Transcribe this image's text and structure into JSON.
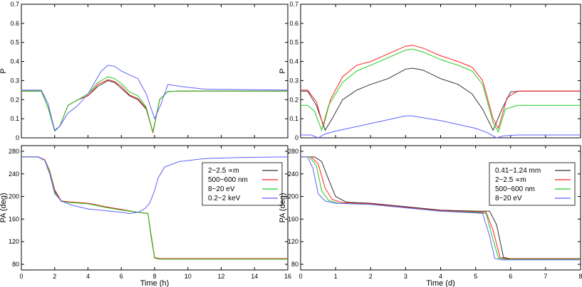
{
  "chart_data": [
    {
      "panel": "top-left",
      "type": "line",
      "xlabel": "",
      "ylabel": "P",
      "xlim": [
        0,
        16
      ],
      "ylim": [
        0,
        0.7
      ],
      "xticks": [],
      "yticks": [
        0,
        0.1,
        0.2,
        0.3,
        0.4,
        0.5,
        0.6,
        0.7
      ],
      "ytick_labels": [
        "0",
        "0.1",
        "0.2",
        "0.3",
        "0.4",
        "0.5",
        "0.6",
        "0.7"
      ],
      "legend": null,
      "series": [
        {
          "color": "#333333",
          "x": [
            0,
            1.2,
            1.6,
            2.0,
            2.3,
            2.8,
            3.4,
            4.0,
            4.6,
            5.2,
            5.6,
            6.0,
            6.5,
            7.0,
            7.5,
            7.9,
            8.3,
            8.8,
            9.5,
            12,
            16
          ],
          "y": [
            0.245,
            0.245,
            0.16,
            0.04,
            0.06,
            0.17,
            0.2,
            0.22,
            0.27,
            0.3,
            0.29,
            0.26,
            0.22,
            0.2,
            0.15,
            0.03,
            0.2,
            0.243,
            0.245,
            0.245,
            0.245
          ]
        },
        {
          "color": "#ff2020",
          "x": [
            0,
            1.2,
            1.6,
            2.0,
            2.3,
            2.8,
            3.4,
            4.0,
            4.6,
            5.2,
            5.6,
            6.0,
            6.5,
            7.0,
            7.5,
            7.9,
            8.3,
            8.8,
            9.5,
            12,
            16
          ],
          "y": [
            0.245,
            0.245,
            0.16,
            0.035,
            0.06,
            0.17,
            0.2,
            0.22,
            0.28,
            0.305,
            0.295,
            0.27,
            0.225,
            0.205,
            0.155,
            0.025,
            0.2,
            0.243,
            0.245,
            0.245,
            0.245
          ]
        },
        {
          "color": "#20cc20",
          "x": [
            0,
            1.2,
            1.6,
            2.0,
            2.3,
            2.8,
            3.4,
            4.0,
            4.6,
            5.2,
            5.6,
            6.0,
            6.5,
            7.0,
            7.5,
            7.9,
            8.3,
            8.8,
            9.5,
            12,
            16
          ],
          "y": [
            0.245,
            0.245,
            0.16,
            0.035,
            0.06,
            0.17,
            0.2,
            0.23,
            0.29,
            0.32,
            0.31,
            0.285,
            0.24,
            0.22,
            0.16,
            0.03,
            0.2,
            0.243,
            0.245,
            0.245,
            0.245
          ]
        },
        {
          "color": "#6060ff",
          "x": [
            0,
            1.2,
            1.6,
            2.0,
            2.3,
            2.8,
            3.4,
            4.0,
            4.4,
            4.8,
            5.2,
            5.6,
            6.0,
            6.5,
            7.0,
            7.5,
            8.0,
            8.4,
            8.8,
            9.5,
            11,
            16
          ],
          "y": [
            0.25,
            0.25,
            0.18,
            0.04,
            0.06,
            0.13,
            0.17,
            0.23,
            0.29,
            0.35,
            0.38,
            0.375,
            0.35,
            0.33,
            0.31,
            0.23,
            0.1,
            0.18,
            0.28,
            0.27,
            0.255,
            0.25
          ]
        }
      ]
    },
    {
      "panel": "top-right",
      "type": "line",
      "xlabel": "",
      "ylabel": "P",
      "xlim": [
        0,
        8
      ],
      "ylim": [
        0,
        0.7
      ],
      "xticks": [],
      "yticks": [
        0,
        0.1,
        0.2,
        0.3,
        0.4,
        0.5,
        0.6,
        0.7
      ],
      "ytick_labels": [
        "0",
        "0.1",
        "0.2",
        "0.3",
        "0.4",
        "0.5",
        "0.6",
        "0.7"
      ],
      "legend": null,
      "series": [
        {
          "color": "#333333",
          "x": [
            0,
            0.2,
            0.45,
            0.7,
            0.9,
            1.2,
            1.6,
            2.0,
            2.5,
            3.0,
            3.2,
            3.5,
            4.0,
            4.5,
            4.9,
            5.2,
            5.5,
            5.75,
            6.0,
            6.3,
            8
          ],
          "y": [
            0.245,
            0.245,
            0.17,
            0.04,
            0.1,
            0.2,
            0.25,
            0.28,
            0.31,
            0.36,
            0.365,
            0.355,
            0.31,
            0.28,
            0.23,
            0.15,
            0.04,
            0.15,
            0.24,
            0.245,
            0.245
          ]
        },
        {
          "color": "#ff2020",
          "x": [
            0,
            0.2,
            0.45,
            0.65,
            0.85,
            1.2,
            1.6,
            2.0,
            2.5,
            3.0,
            3.2,
            3.5,
            4.0,
            4.5,
            4.9,
            5.2,
            5.5,
            5.65,
            5.9,
            6.2,
            8
          ],
          "y": [
            0.25,
            0.25,
            0.19,
            0.06,
            0.2,
            0.32,
            0.38,
            0.4,
            0.44,
            0.48,
            0.485,
            0.47,
            0.43,
            0.4,
            0.37,
            0.3,
            0.1,
            0.05,
            0.21,
            0.245,
            0.245
          ]
        },
        {
          "color": "#20cc20",
          "x": [
            0,
            0.2,
            0.4,
            0.6,
            0.8,
            1.2,
            1.6,
            2.0,
            2.5,
            3.0,
            3.2,
            3.5,
            4.0,
            4.5,
            4.9,
            5.2,
            5.5,
            5.65,
            5.85,
            6.2,
            8
          ],
          "y": [
            0.17,
            0.17,
            0.14,
            0.04,
            0.17,
            0.29,
            0.35,
            0.38,
            0.42,
            0.46,
            0.465,
            0.45,
            0.41,
            0.38,
            0.35,
            0.28,
            0.08,
            0.03,
            0.15,
            0.17,
            0.17
          ]
        },
        {
          "color": "#6060ff",
          "x": [
            0,
            0.3,
            0.5,
            0.7,
            1.0,
            1.5,
            2.0,
            2.5,
            3.0,
            3.2,
            3.5,
            4.0,
            4.5,
            5.0,
            5.3,
            5.6,
            5.8,
            6.2,
            8
          ],
          "y": [
            0.015,
            0.015,
            0.0,
            0.02,
            0.035,
            0.055,
            0.075,
            0.095,
            0.115,
            0.115,
            0.105,
            0.09,
            0.07,
            0.05,
            0.03,
            0.0,
            0.01,
            0.015,
            0.015
          ]
        }
      ]
    },
    {
      "panel": "bottom-left",
      "type": "line",
      "xlabel": "Time (h)",
      "ylabel": "PA (deg)",
      "xlim": [
        0,
        16
      ],
      "ylim": [
        70,
        290
      ],
      "xticks": [
        0,
        2,
        4,
        6,
        8,
        10,
        12,
        14,
        16
      ],
      "xtick_labels": [
        "0",
        "2",
        "4",
        "6",
        "8",
        "10",
        "12",
        "14",
        "16"
      ],
      "yticks": [
        80,
        120,
        160,
        200,
        240,
        280
      ],
      "ytick_labels": [
        "80",
        "120",
        "160",
        "200",
        "240",
        "280"
      ],
      "legend": {
        "position": "center-right",
        "entries": [
          {
            "label": "2~2.5 ∝m",
            "color": "#333333"
          },
          {
            "label": "500~600 nm",
            "color": "#ff2020"
          },
          {
            "label": "8~20 eV",
            "color": "#20cc20"
          },
          {
            "label": "0.2~2 keV",
            "color": "#6060ff"
          }
        ]
      },
      "series": [
        {
          "color": "#333333",
          "x": [
            0,
            1.0,
            1.4,
            1.7,
            2.0,
            2.4,
            3.0,
            4.0,
            5.0,
            6.0,
            7.0,
            7.6,
            7.8,
            8.0,
            8.3,
            9,
            16
          ],
          "y": [
            270,
            270,
            265,
            245,
            210,
            192,
            190,
            188,
            182,
            177,
            172,
            170,
            130,
            92,
            90,
            90,
            90
          ]
        },
        {
          "color": "#ff2020",
          "x": [
            0,
            1.0,
            1.4,
            1.7,
            2.0,
            2.4,
            3.0,
            4.0,
            5.0,
            6.0,
            7.0,
            7.6,
            7.8,
            8.0,
            8.3,
            9,
            16
          ],
          "y": [
            270,
            270,
            265,
            246,
            212,
            192,
            190,
            188,
            182,
            177,
            172,
            170,
            128,
            92,
            90,
            90,
            90
          ]
        },
        {
          "color": "#20cc20",
          "x": [
            0,
            1.0,
            1.4,
            1.7,
            2.0,
            2.4,
            3.0,
            4.0,
            5.0,
            6.0,
            7.0,
            7.6,
            7.8,
            8.0,
            8.3,
            9,
            16
          ],
          "y": [
            270,
            270,
            264,
            244,
            208,
            191,
            189,
            187,
            181,
            176,
            172,
            170,
            126,
            91,
            89,
            89,
            89
          ]
        },
        {
          "color": "#6060ff",
          "x": [
            0,
            1.0,
            1.4,
            1.7,
            2.0,
            2.4,
            3.0,
            4.0,
            5.0,
            6.0,
            6.5,
            7.0,
            7.4,
            7.7,
            8.0,
            8.2,
            8.6,
            9.5,
            11,
            13,
            16
          ],
          "y": [
            270,
            270,
            264,
            240,
            205,
            192,
            185,
            178,
            175,
            172,
            170,
            172,
            178,
            188,
            210,
            232,
            252,
            262,
            267,
            269,
            270
          ]
        }
      ]
    },
    {
      "panel": "bottom-right",
      "type": "line",
      "xlabel": "Time (d)",
      "ylabel": "PA (deg)",
      "xlim": [
        0,
        8
      ],
      "ylim": [
        70,
        290
      ],
      "xticks": [
        0,
        1,
        2,
        3,
        4,
        5,
        6,
        7,
        8
      ],
      "xtick_labels": [
        "0",
        "1",
        "2",
        "3",
        "4",
        "5",
        "6",
        "7",
        "8"
      ],
      "yticks": [
        80,
        120,
        160,
        200,
        240,
        280
      ],
      "ytick_labels": [
        "80",
        "120",
        "160",
        "200",
        "240",
        "280"
      ],
      "legend": {
        "position": "center-right",
        "entries": [
          {
            "label": "0.41~1.24 mm",
            "color": "#333333"
          },
          {
            "label": "2~2.5 ∝m",
            "color": "#ff2020"
          },
          {
            "label": "500~600 nm",
            "color": "#20cc20"
          },
          {
            "label": "8~20 eV",
            "color": "#6060ff"
          }
        ]
      },
      "series": [
        {
          "color": "#333333",
          "x": [
            0,
            0.4,
            0.6,
            0.8,
            1.0,
            1.3,
            2,
            3,
            4,
            5,
            5.4,
            5.6,
            5.8,
            6.0,
            8
          ],
          "y": [
            270,
            270,
            262,
            230,
            200,
            190,
            188,
            182,
            176,
            174,
            174,
            150,
            92,
            90,
            90
          ]
        },
        {
          "color": "#ff2020",
          "x": [
            0,
            0.3,
            0.5,
            0.7,
            0.9,
            1.2,
            2,
            3,
            4,
            5,
            5.3,
            5.5,
            5.7,
            5.9,
            8
          ],
          "y": [
            270,
            270,
            258,
            215,
            195,
            189,
            187,
            181,
            175,
            173,
            172,
            140,
            92,
            90,
            90
          ]
        },
        {
          "color": "#20cc20",
          "x": [
            0,
            0.25,
            0.45,
            0.6,
            0.8,
            1.1,
            2,
            3,
            4,
            5,
            5.3,
            5.45,
            5.65,
            5.85,
            8
          ],
          "y": [
            270,
            270,
            255,
            210,
            193,
            188,
            186,
            180,
            174,
            172,
            170,
            135,
            91,
            89,
            89
          ]
        },
        {
          "color": "#6060ff",
          "x": [
            0,
            0.2,
            0.35,
            0.5,
            0.7,
            1.0,
            2,
            3,
            4,
            5,
            5.2,
            5.4,
            5.55,
            5.75,
            8
          ],
          "y": [
            270,
            270,
            250,
            205,
            192,
            188,
            186,
            180,
            174,
            171,
            170,
            130,
            90,
            88,
            88
          ]
        }
      ]
    }
  ]
}
